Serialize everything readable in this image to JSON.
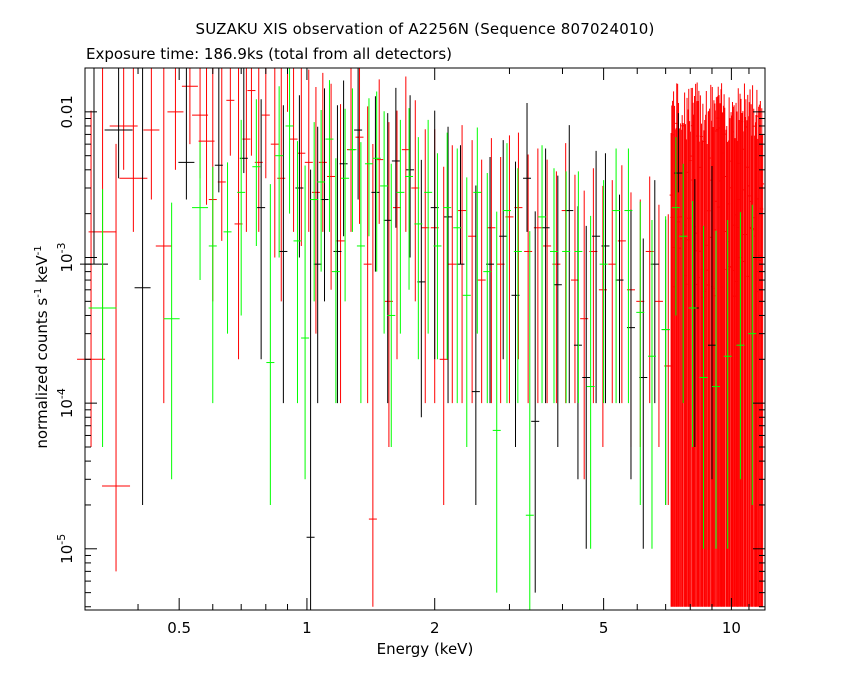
{
  "chart_data": {
    "type": "scatter",
    "title": "SUZAKU XIS observation of A2256N (Sequence 807024010)",
    "subtitle": "Exposure time: 186.9ks (total from all detectors)",
    "xlabel": "Energy (keV)",
    "ylabel_parts": {
      "text": "normalized counts s",
      "sup1": "-1",
      "mid": " keV",
      "sup2": "-1"
    },
    "xscale": "log",
    "yscale": "log",
    "xlim": [
      0.3,
      12
    ],
    "ylim": [
      3.8e-06,
      0.02
    ],
    "x_ticks": [
      {
        "value": 0.5,
        "label": "0.5"
      },
      {
        "value": 1,
        "label": "1"
      },
      {
        "value": 2,
        "label": "2"
      },
      {
        "value": 5,
        "label": "5"
      },
      {
        "value": 10,
        "label": "10"
      }
    ],
    "y_ticks": [
      {
        "value": 0.01,
        "label": "0.01",
        "exp": ""
      },
      {
        "value": 0.001,
        "label": "10",
        "exp": "-3"
      },
      {
        "value": 0.0001,
        "label": "10",
        "exp": "-4"
      },
      {
        "value": 1e-05,
        "label": "10",
        "exp": "-5"
      }
    ],
    "grid": false,
    "series": [
      {
        "color": "#000000",
        "points": [
          [
            0.315,
            0.0009,
            0.0009,
            0.02
          ],
          [
            0.36,
            0.0075,
            0.004,
            0.02
          ],
          [
            0.41,
            0.00062,
            0.0006,
            0.02
          ],
          [
            0.52,
            0.0045,
            0.002,
            0.02
          ],
          [
            0.62,
            0.0043,
            0.0015,
            0.02
          ],
          [
            0.71,
            0.0048,
            0.001,
            0.02
          ],
          [
            0.78,
            0.0022,
            0.002,
            0.01
          ],
          [
            0.88,
            0.0011,
            0.001,
            0.01
          ],
          [
            0.96,
            0.003,
            0.002,
            0.01
          ],
          [
            1.02,
            1.2e-05,
            1e-05,
            0.004
          ],
          [
            1.06,
            0.0009,
            0.0008,
            0.007
          ],
          [
            1.1,
            0.0025,
            0.002,
            0.012
          ],
          [
            1.18,
            0.0011,
            0.001,
            0.01
          ],
          [
            1.22,
            0.0044,
            0.003,
            0.012
          ],
          [
            1.32,
            0.0075,
            0.005,
            0.015
          ],
          [
            1.45,
            0.0028,
            0.002,
            0.01
          ],
          [
            1.55,
            0.0018,
            0.0017,
            0.008
          ],
          [
            1.62,
            0.0046,
            0.003,
            0.01
          ],
          [
            1.75,
            0.004,
            0.003,
            0.009
          ],
          [
            1.86,
            0.00068,
            0.0006,
            0.004
          ],
          [
            2.0,
            0.0022,
            0.002,
            0.008
          ],
          [
            2.15,
            0.0019,
            0.0018,
            0.006
          ],
          [
            2.3,
            0.0009,
            0.0009,
            0.005
          ],
          [
            2.5,
            0.00012,
            0.0001,
            0.003
          ],
          [
            2.7,
            0.0009,
            0.0008,
            0.004
          ],
          [
            2.9,
            0.0014,
            0.0012,
            0.005
          ],
          [
            3.1,
            0.00055,
            0.0005,
            0.004
          ],
          [
            3.3,
            0.0035,
            0.002,
            0.008
          ],
          [
            3.45,
            7.5e-05,
            7e-05,
            0.002
          ],
          [
            3.65,
            0.0016,
            0.0015,
            0.004
          ],
          [
            3.9,
            0.00065,
            0.0006,
            0.003
          ],
          [
            4.15,
            0.0021,
            0.002,
            0.006
          ],
          [
            4.35,
            0.00025,
            0.00022,
            0.002
          ],
          [
            4.55,
            0.00015,
            0.00014,
            0.0015
          ],
          [
            4.8,
            0.0014,
            0.0013,
            0.004
          ],
          [
            5.05,
            0.0012,
            0.0011,
            0.004
          ],
          [
            5.45,
            0.0007,
            0.0006,
            0.002
          ],
          [
            5.8,
            0.00033,
            0.0003,
            0.0018
          ],
          [
            6.2,
            0.00015,
            0.00014,
            0.0012
          ],
          [
            6.6,
            0.0009,
            0.0008,
            0.0025
          ],
          [
            7.0,
            0.00032,
            0.0003,
            0.0015
          ],
          [
            7.5,
            0.0038,
            0.001,
            0.006
          ],
          [
            8.2,
            0.00045,
            0.0004,
            0.003
          ],
          [
            9.0,
            0.00025,
            0.00022,
            0.004
          ]
        ]
      },
      {
        "color": "#ff0000",
        "points": [
          [
            0.31,
            0.0002,
            0.00015,
            0.01
          ],
          [
            0.33,
            0.0015,
            0.0013,
            0.02
          ],
          [
            0.355,
            2.7e-05,
            2e-05,
            0.006
          ],
          [
            0.37,
            0.008,
            0.004,
            0.02
          ],
          [
            0.39,
            0.0035,
            0.002,
            0.02
          ],
          [
            0.43,
            0.0075,
            0.005,
            0.02
          ],
          [
            0.46,
            0.0012,
            0.0011,
            0.02
          ],
          [
            0.49,
            0.01,
            0.006,
            0.02
          ],
          [
            0.53,
            0.015,
            0.009,
            0.02
          ],
          [
            0.56,
            0.0095,
            0.006,
            0.02
          ],
          [
            0.58,
            0.0063,
            0.004,
            0.02
          ],
          [
            0.6,
            0.0025,
            0.002,
            0.02
          ],
          [
            0.63,
            0.0033,
            0.002,
            0.02
          ],
          [
            0.66,
            0.012,
            0.007,
            0.02
          ],
          [
            0.69,
            0.0017,
            0.0015,
            0.02
          ],
          [
            0.72,
            0.0065,
            0.005,
            0.02
          ],
          [
            0.74,
            0.014,
            0.009,
            0.02
          ],
          [
            0.77,
            0.0045,
            0.003,
            0.02
          ],
          [
            0.8,
            0.0095,
            0.006,
            0.02
          ],
          [
            0.84,
            0.006,
            0.005,
            0.02
          ],
          [
            0.87,
            0.0035,
            0.003,
            0.02
          ],
          [
            0.9,
            0.02,
            0.01,
            0.02
          ],
          [
            0.93,
            0.0065,
            0.005,
            0.02
          ],
          [
            0.97,
            0.0052,
            0.004,
            0.02
          ],
          [
            1.01,
            0.0045,
            0.003,
            0.015
          ],
          [
            1.05,
            0.0028,
            0.0025,
            0.012
          ],
          [
            1.09,
            0.0045,
            0.003,
            0.014
          ],
          [
            1.14,
            0.0036,
            0.003,
            0.012
          ],
          [
            1.2,
            0.0013,
            0.0012,
            0.01
          ],
          [
            1.27,
            0.0055,
            0.004,
            0.015
          ],
          [
            1.33,
            0.0067,
            0.005,
            0.015
          ],
          [
            1.39,
            0.0009,
            0.0008,
            0.01
          ],
          [
            1.43,
            1.6e-05,
            1.2e-05,
            0.006
          ],
          [
            1.48,
            0.0047,
            0.003,
            0.012
          ],
          [
            1.56,
            0.0005,
            0.00045,
            0.008
          ],
          [
            1.63,
            0.0022,
            0.002,
            0.008
          ],
          [
            1.71,
            0.0055,
            0.004,
            0.012
          ],
          [
            1.8,
            0.003,
            0.0025,
            0.009
          ],
          [
            1.9,
            0.0016,
            0.0015,
            0.006
          ],
          [
            2.0,
            0.0016,
            0.0015,
            0.006
          ],
          [
            2.1,
            0.0002,
            0.00018,
            0.004
          ],
          [
            2.2,
            0.0009,
            0.0008,
            0.005
          ],
          [
            2.32,
            0.0021,
            0.002,
            0.006
          ],
          [
            2.45,
            0.0014,
            0.0013,
            0.005
          ],
          [
            2.58,
            0.0007,
            0.0006,
            0.004
          ],
          [
            2.72,
            0.0016,
            0.0015,
            0.005
          ],
          [
            2.86,
            0.0009,
            0.0008,
            0.004
          ],
          [
            3.0,
            0.0019,
            0.0018,
            0.005
          ],
          [
            3.15,
            0.0022,
            0.002,
            0.005
          ],
          [
            3.32,
            0.0011,
            0.001,
            0.004
          ],
          [
            3.5,
            0.0016,
            0.0015,
            0.004
          ],
          [
            3.68,
            0.0012,
            0.0011,
            0.0035
          ],
          [
            3.87,
            0.0009,
            0.0008,
            0.003
          ],
          [
            4.07,
            0.0021,
            0.002,
            0.004
          ],
          [
            4.28,
            0.0007,
            0.0006,
            0.003
          ],
          [
            4.5,
            0.00038,
            0.00035,
            0.0025
          ],
          [
            4.73,
            0.0011,
            0.001,
            0.003
          ],
          [
            4.98,
            0.0006,
            0.00055,
            0.0025
          ],
          [
            5.24,
            0.0009,
            0.0008,
            0.0025
          ],
          [
            5.52,
            0.0013,
            0.0012,
            0.003
          ],
          [
            5.8,
            0.0006,
            0.00055,
            0.0022
          ],
          [
            6.1,
            0.0005,
            0.00045,
            0.002
          ],
          [
            6.42,
            0.0011,
            0.001,
            0.0025
          ],
          [
            6.75,
            0.0005,
            0.00045,
            0.0018
          ],
          [
            7.1,
            0.00018,
            0.00016,
            0.0018
          ]
        ]
      },
      {
        "color": "#00ff00",
        "points": [
          [
            0.33,
            0.00045,
            0.0004,
            0.0025
          ],
          [
            0.48,
            0.00038,
            0.00035,
            0.002
          ],
          [
            0.56,
            0.0022,
            0.0015,
            0.004
          ],
          [
            0.6,
            0.0012,
            0.0011,
            0.003
          ],
          [
            0.65,
            0.0015,
            0.0012,
            0.003
          ],
          [
            0.7,
            0.0028,
            0.0024,
            0.006
          ],
          [
            0.76,
            0.0042,
            0.003,
            0.008
          ],
          [
            0.82,
            0.00019,
            0.00017,
            0.003
          ],
          [
            0.86,
            0.005,
            0.004,
            0.01
          ],
          [
            0.91,
            0.008,
            0.006,
            0.012
          ],
          [
            0.95,
            0.0013,
            0.0012,
            0.005
          ],
          [
            0.99,
            0.00028,
            0.00025,
            0.004
          ],
          [
            1.04,
            0.0025,
            0.002,
            0.006
          ],
          [
            1.08,
            0.0033,
            0.0025,
            0.007
          ],
          [
            1.13,
            0.0065,
            0.005,
            0.01
          ],
          [
            1.17,
            0.0008,
            0.0007,
            0.004
          ],
          [
            1.23,
            0.0035,
            0.003,
            0.007
          ],
          [
            1.28,
            0.0055,
            0.004,
            0.009
          ],
          [
            1.34,
            0.0012,
            0.0011,
            0.005
          ],
          [
            1.4,
            0.0044,
            0.003,
            0.008
          ],
          [
            1.46,
            0.0048,
            0.004,
            0.009
          ],
          [
            1.52,
            0.0031,
            0.0028,
            0.007
          ],
          [
            1.58,
            0.0004,
            0.00035,
            0.004
          ],
          [
            1.66,
            0.0028,
            0.0025,
            0.006
          ],
          [
            1.74,
            0.0036,
            0.003,
            0.007
          ],
          [
            1.83,
            0.0017,
            0.0015,
            0.005
          ],
          [
            1.93,
            0.0028,
            0.0025,
            0.006
          ],
          [
            2.03,
            0.0012,
            0.001,
            0.004
          ],
          [
            2.14,
            0.0022,
            0.002,
            0.005
          ],
          [
            2.26,
            0.0016,
            0.0015,
            0.004
          ],
          [
            2.38,
            0.00055,
            0.0005,
            0.003
          ],
          [
            2.52,
            0.0028,
            0.0025,
            0.005
          ],
          [
            2.66,
            0.0008,
            0.0007,
            0.003
          ],
          [
            2.8,
            6.5e-05,
            6e-05,
            0.002
          ],
          [
            2.96,
            0.0021,
            0.002,
            0.004
          ],
          [
            3.14,
            0.0011,
            0.001,
            0.003
          ],
          [
            3.35,
            1.7e-05,
            1.5e-05,
            0.0015
          ],
          [
            3.58,
            0.0019,
            0.0018,
            0.004
          ],
          [
            3.82,
            0.0011,
            0.001,
            0.003
          ],
          [
            4.08,
            0.0011,
            0.001,
            0.0028
          ],
          [
            4.36,
            0.0011,
            0.001,
            0.0028
          ],
          [
            4.66,
            0.00013,
            0.00012,
            0.0018
          ],
          [
            5.0,
            0.0009,
            0.0008,
            0.0025
          ],
          [
            5.35,
            0.0021,
            0.002,
            0.0035
          ],
          [
            5.72,
            0.0021,
            0.002,
            0.0035
          ],
          [
            6.1,
            0.00042,
            0.0004,
            0.002
          ],
          [
            6.5,
            0.00021,
            0.0002,
            0.0016
          ],
          [
            7.0,
            0.00032,
            0.0003,
            0.0016
          ],
          [
            7.4,
            0.0022,
            0.0018,
            0.0045
          ],
          [
            7.7,
            0.0014,
            0.0013,
            0.003
          ],
          [
            8.1,
            0.00045,
            0.0004,
            0.002
          ],
          [
            8.6,
            0.00015,
            0.00014,
            0.0015
          ],
          [
            9.2,
            0.00013,
            0.00012,
            0.0014
          ],
          [
            9.8,
            0.00021,
            0.0002,
            0.0016
          ],
          [
            10.5,
            0.00025,
            0.00022,
            0.0018
          ],
          [
            11.2,
            0.0003,
            0.00028,
            0.002
          ]
        ]
      }
    ],
    "dense_band": {
      "color": "#ff0000",
      "x_from": 7.2,
      "x_to": 11.9,
      "points_count": 110,
      "y_range": [
        0.0005,
        0.01
      ],
      "err_low": 4e-06,
      "err_high_range": [
        0.006,
        0.016
      ]
    }
  }
}
